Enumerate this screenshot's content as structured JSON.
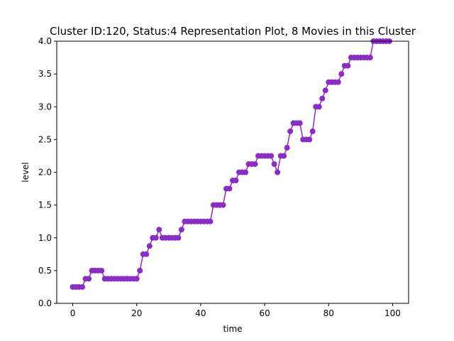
{
  "chart_data": {
    "type": "line",
    "title": "Cluster ID:120, Status:4 Representation Plot, 8 Movies in this Cluster",
    "xlabel": "time",
    "ylabel": "level",
    "xlim": [
      -5,
      105
    ],
    "ylim": [
      0,
      4
    ],
    "xticks": [
      0,
      20,
      40,
      60,
      80,
      100
    ],
    "yticks": [
      0.0,
      0.5,
      1.0,
      1.5,
      2.0,
      2.5,
      3.0,
      3.5,
      4.0
    ],
    "xtick_labels": [
      "0",
      "20",
      "40",
      "60",
      "80",
      "100"
    ],
    "ytick_labels": [
      "0.0",
      "0.5",
      "1.0",
      "1.5",
      "2.0",
      "2.5",
      "3.0",
      "3.5",
      "4.0"
    ],
    "grid": false,
    "series": [
      {
        "color": "#8b2cc6",
        "marker": "circle",
        "x": [
          0,
          1,
          2,
          3,
          4,
          5,
          6,
          7,
          8,
          9,
          10,
          11,
          12,
          13,
          14,
          15,
          16,
          17,
          18,
          19,
          20,
          21,
          22,
          23,
          24,
          25,
          26,
          27,
          28,
          29,
          30,
          31,
          32,
          33,
          34,
          35,
          36,
          37,
          38,
          39,
          40,
          41,
          42,
          43,
          44,
          45,
          46,
          47,
          48,
          49,
          50,
          51,
          52,
          53,
          54,
          55,
          56,
          57,
          58,
          59,
          60,
          61,
          62,
          63,
          64,
          65,
          66,
          67,
          68,
          69,
          70,
          71,
          72,
          73,
          74,
          75,
          76,
          77,
          78,
          79,
          80,
          81,
          82,
          83,
          84,
          85,
          86,
          87,
          88,
          89,
          90,
          91,
          92,
          93,
          94,
          95,
          96,
          97,
          98,
          99
        ],
        "y": [
          0.25,
          0.25,
          0.25,
          0.25,
          0.375,
          0.375,
          0.5,
          0.5,
          0.5,
          0.5,
          0.375,
          0.375,
          0.375,
          0.375,
          0.375,
          0.375,
          0.375,
          0.375,
          0.375,
          0.375,
          0.375,
          0.5,
          0.75,
          0.75,
          0.875,
          1.0,
          1.0,
          1.125,
          1.0,
          1.0,
          1.0,
          1.0,
          1.0,
          1.0,
          1.125,
          1.25,
          1.25,
          1.25,
          1.25,
          1.25,
          1.25,
          1.25,
          1.25,
          1.25,
          1.5,
          1.5,
          1.5,
          1.5,
          1.75,
          1.75,
          1.875,
          1.875,
          2.0,
          2.0,
          2.0,
          2.125,
          2.125,
          2.125,
          2.25,
          2.25,
          2.25,
          2.25,
          2.25,
          2.125,
          2.0,
          2.25,
          2.25,
          2.375,
          2.625,
          2.75,
          2.75,
          2.75,
          2.5,
          2.5,
          2.5,
          2.625,
          3.0,
          3.0,
          3.125,
          3.25,
          3.375,
          3.375,
          3.375,
          3.375,
          3.5,
          3.625,
          3.625,
          3.75,
          3.75,
          3.75,
          3.75,
          3.75,
          3.75,
          3.75,
          4.0,
          4.0,
          4.0,
          4.0,
          4.0,
          4.0
        ]
      }
    ]
  }
}
